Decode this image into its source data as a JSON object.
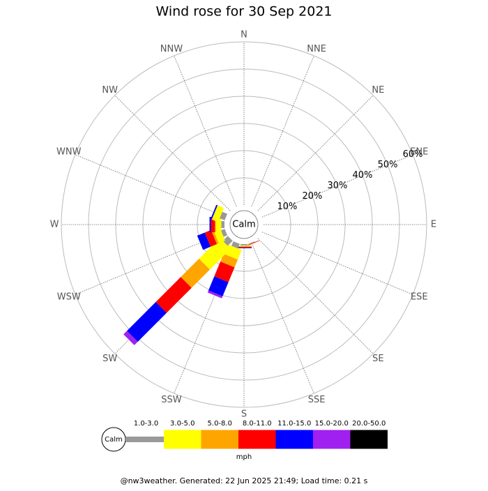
{
  "chart_data": {
    "type": "windrose",
    "title": "Wind rose for 30 Sep 2021",
    "directions": [
      "N",
      "NNE",
      "NE",
      "ENE",
      "E",
      "ESE",
      "SE",
      "SSE",
      "S",
      "SSW",
      "SW",
      "WSW",
      "W",
      "WNW",
      "NW",
      "NNW"
    ],
    "rlim": [
      0,
      60
    ],
    "rticks": [
      {
        "value": 10,
        "label": "10%"
      },
      {
        "value": 20,
        "label": "20%"
      },
      {
        "value": 30,
        "label": "30%"
      },
      {
        "value": 40,
        "label": "40%"
      },
      {
        "value": 50,
        "label": "50%"
      },
      {
        "value": 60,
        "label": "60%"
      }
    ],
    "calm_label": "Calm",
    "unit": "mph",
    "series": [
      {
        "name": "1.0-3.0",
        "color": "#999999",
        "values": [
          0,
          0,
          0,
          0,
          0,
          0,
          0,
          0.3,
          0.5,
          1.8,
          2.6,
          1.5,
          1.2,
          2,
          0,
          0
        ]
      },
      {
        "name": "3.0-5.0",
        "color": "#ffff00",
        "values": [
          0,
          0,
          0,
          0,
          0,
          0,
          0,
          0,
          0.3,
          3.8,
          10.8,
          2.5,
          2,
          2.5,
          0,
          0
        ]
      },
      {
        "name": "5.0-8.0",
        "color": "#ffa500",
        "values": [
          0,
          0,
          0,
          0,
          0,
          0,
          0,
          0,
          0.2,
          3.1,
          9.5,
          0.8,
          0.3,
          0,
          0,
          0
        ]
      },
      {
        "name": "8.0-11.0",
        "color": "#ff0000",
        "values": [
          0,
          0,
          0,
          0,
          0,
          0,
          0,
          0.2,
          0.3,
          5.9,
          13,
          2.5,
          1.5,
          0,
          0,
          0
        ]
      },
      {
        "name": "11.0-15.0",
        "color": "#0000ff",
        "values": [
          0,
          0,
          0,
          0,
          0,
          0,
          0,
          0,
          0.2,
          5.6,
          15,
          3,
          0.5,
          0.5,
          0,
          0
        ]
      },
      {
        "name": "15.0-20.0",
        "color": "#a020f0",
        "values": [
          0,
          0,
          0,
          0,
          0,
          0,
          0,
          0,
          0,
          0.8,
          1.8,
          0,
          0,
          0,
          0,
          0
        ]
      },
      {
        "name": "20.0-50.0",
        "color": "#000000",
        "values": [
          0,
          0,
          0,
          0,
          0,
          0,
          0,
          0,
          0,
          0,
          0,
          0,
          0,
          0,
          0,
          0
        ]
      }
    ]
  },
  "footer": "@nw3weather. Generated: 22 Jun 2025 21:49; Load time: 0.21 s"
}
